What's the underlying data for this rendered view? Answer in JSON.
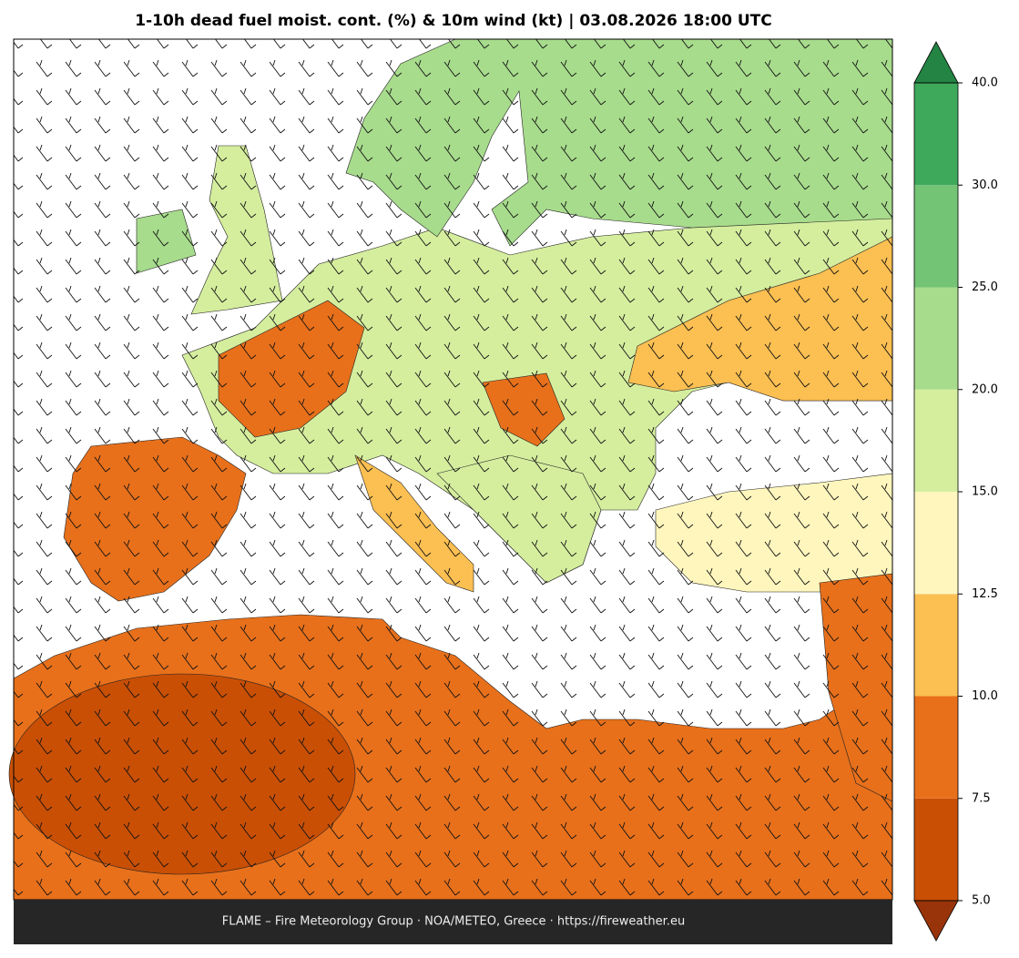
{
  "title": "1-10h dead fuel moist. cont. (%) & 10m wind (kt)  |  03.08.2026 18:00 UTC",
  "colorbar": {
    "ticks": [
      {
        "value": 5,
        "label": "5.0"
      },
      {
        "value": 7.5,
        "label": "7.5"
      },
      {
        "value": 10,
        "label": "10.0"
      },
      {
        "value": 12.5,
        "label": "12.5"
      },
      {
        "value": 15,
        "label": "15.0"
      },
      {
        "value": 20,
        "label": "20.0"
      },
      {
        "value": 25,
        "label": "25.0"
      },
      {
        "value": 30,
        "label": "30.0"
      },
      {
        "value": 40,
        "label": "40.0"
      }
    ],
    "colors": [
      "#c94f05",
      "#e8701b",
      "#fbbf52",
      "#fff6bd",
      "#d5ee9e",
      "#a7dc8c",
      "#74c476",
      "#3ea85b"
    ],
    "under_color": "#99340a",
    "over_color": "#238443"
  },
  "footer": "FLAME – Fire Meteorology Group · NOA/METEO, Greece · https://fireweather.eu"
}
